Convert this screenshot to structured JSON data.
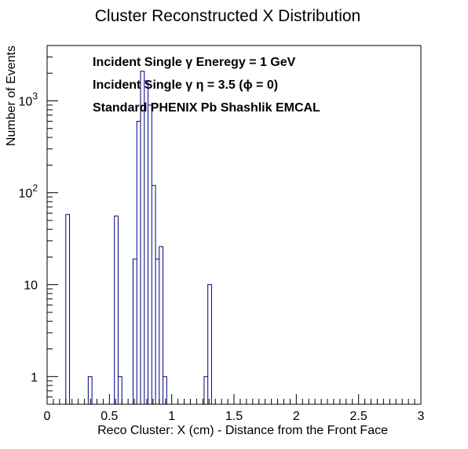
{
  "chart_data": {
    "type": "histogram",
    "title": "Cluster Reconstructed X Distribution",
    "xlabel": "Reco Cluster: X (cm) - Distance from the Front Face",
    "ylabel": "Number of Events",
    "xlim": [
      0,
      3
    ],
    "ylim": [
      0.5,
      4000
    ],
    "y_scale": "log",
    "grid": false,
    "line_color": "#000080",
    "x_ticks": [
      {
        "value": 0,
        "label": "0"
      },
      {
        "value": 0.5,
        "label": "0.5"
      },
      {
        "value": 1,
        "label": "1"
      },
      {
        "value": 1.5,
        "label": "1.5"
      },
      {
        "value": 2,
        "label": "2"
      },
      {
        "value": 2.5,
        "label": "2.5"
      },
      {
        "value": 3,
        "label": "3"
      }
    ],
    "y_ticks": [
      {
        "value": 1,
        "base": "1",
        "exp": ""
      },
      {
        "value": 10,
        "base": "10",
        "exp": ""
      },
      {
        "value": 100,
        "base": "10",
        "exp": "2"
      },
      {
        "value": 1000,
        "base": "10",
        "exp": "3"
      }
    ],
    "annotations": [
      "Incident Single   γ Eneregy = 1 GeV",
      "Incident Single   γ  η = 3.5 (ϕ = 0)",
      "Standard PHENIX Pb Shashlik EMCAL"
    ],
    "bins": [
      {
        "x0": 0.15,
        "x1": 0.18,
        "count": 58
      },
      {
        "x0": 0.33,
        "x1": 0.36,
        "count": 1
      },
      {
        "x0": 0.54,
        "x1": 0.57,
        "count": 56
      },
      {
        "x0": 0.57,
        "x1": 0.6,
        "count": 1
      },
      {
        "x0": 0.69,
        "x1": 0.72,
        "count": 19
      },
      {
        "x0": 0.72,
        "x1": 0.75,
        "count": 600
      },
      {
        "x0": 0.75,
        "x1": 0.78,
        "count": 2100
      },
      {
        "x0": 0.78,
        "x1": 0.81,
        "count": 1650
      },
      {
        "x0": 0.81,
        "x1": 0.84,
        "count": 900
      },
      {
        "x0": 0.84,
        "x1": 0.87,
        "count": 120
      },
      {
        "x0": 0.87,
        "x1": 0.9,
        "count": 19
      },
      {
        "x0": 0.9,
        "x1": 0.93,
        "count": 26
      },
      {
        "x0": 0.93,
        "x1": 0.96,
        "count": 1
      },
      {
        "x0": 1.26,
        "x1": 1.29,
        "count": 1
      },
      {
        "x0": 1.29,
        "x1": 1.32,
        "count": 10
      }
    ]
  }
}
